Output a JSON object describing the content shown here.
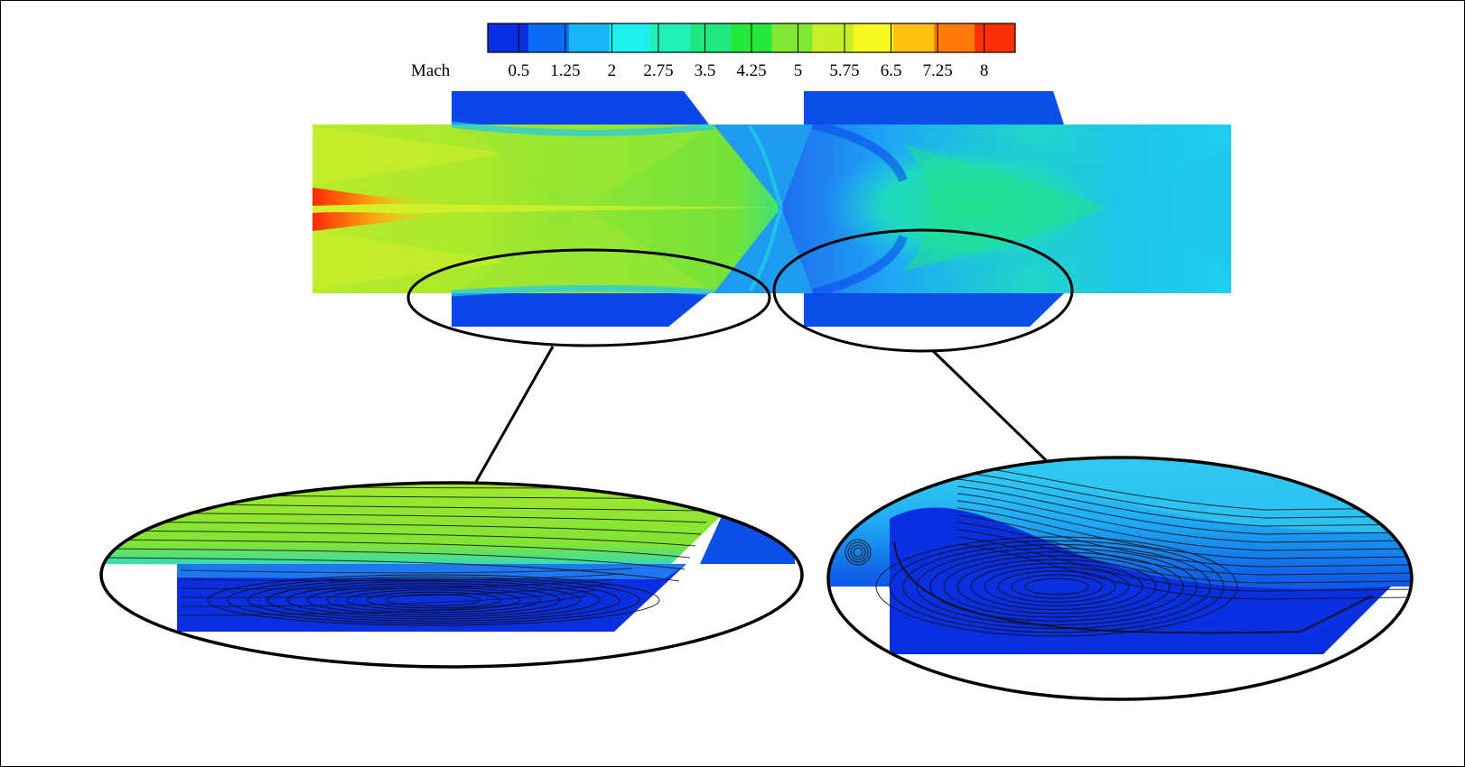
{
  "colorbar": {
    "title": "Mach",
    "ticks": [
      "0.5",
      "1.25",
      "2",
      "2.75",
      "3.5",
      "4.25",
      "5",
      "5.75",
      "6.5",
      "7.25",
      "8"
    ],
    "range": [
      0,
      8.5
    ],
    "colors": [
      "#0a2fe0",
      "#0a6cf5",
      "#17b6f8",
      "#1ef0ee",
      "#1ef0b8",
      "#1ee87c",
      "#22e83a",
      "#7fe832",
      "#c6ef28",
      "#f8f820",
      "#ffc010",
      "#ff7a0a",
      "#ff3006"
    ]
  },
  "callouts": [
    {
      "name": "upper-cavity-zoom"
    },
    {
      "name": "lower-cavity-zoom"
    }
  ],
  "colors": {
    "outline": "#000000",
    "recirculation": "#0622c8",
    "streamline": "#101010"
  }
}
